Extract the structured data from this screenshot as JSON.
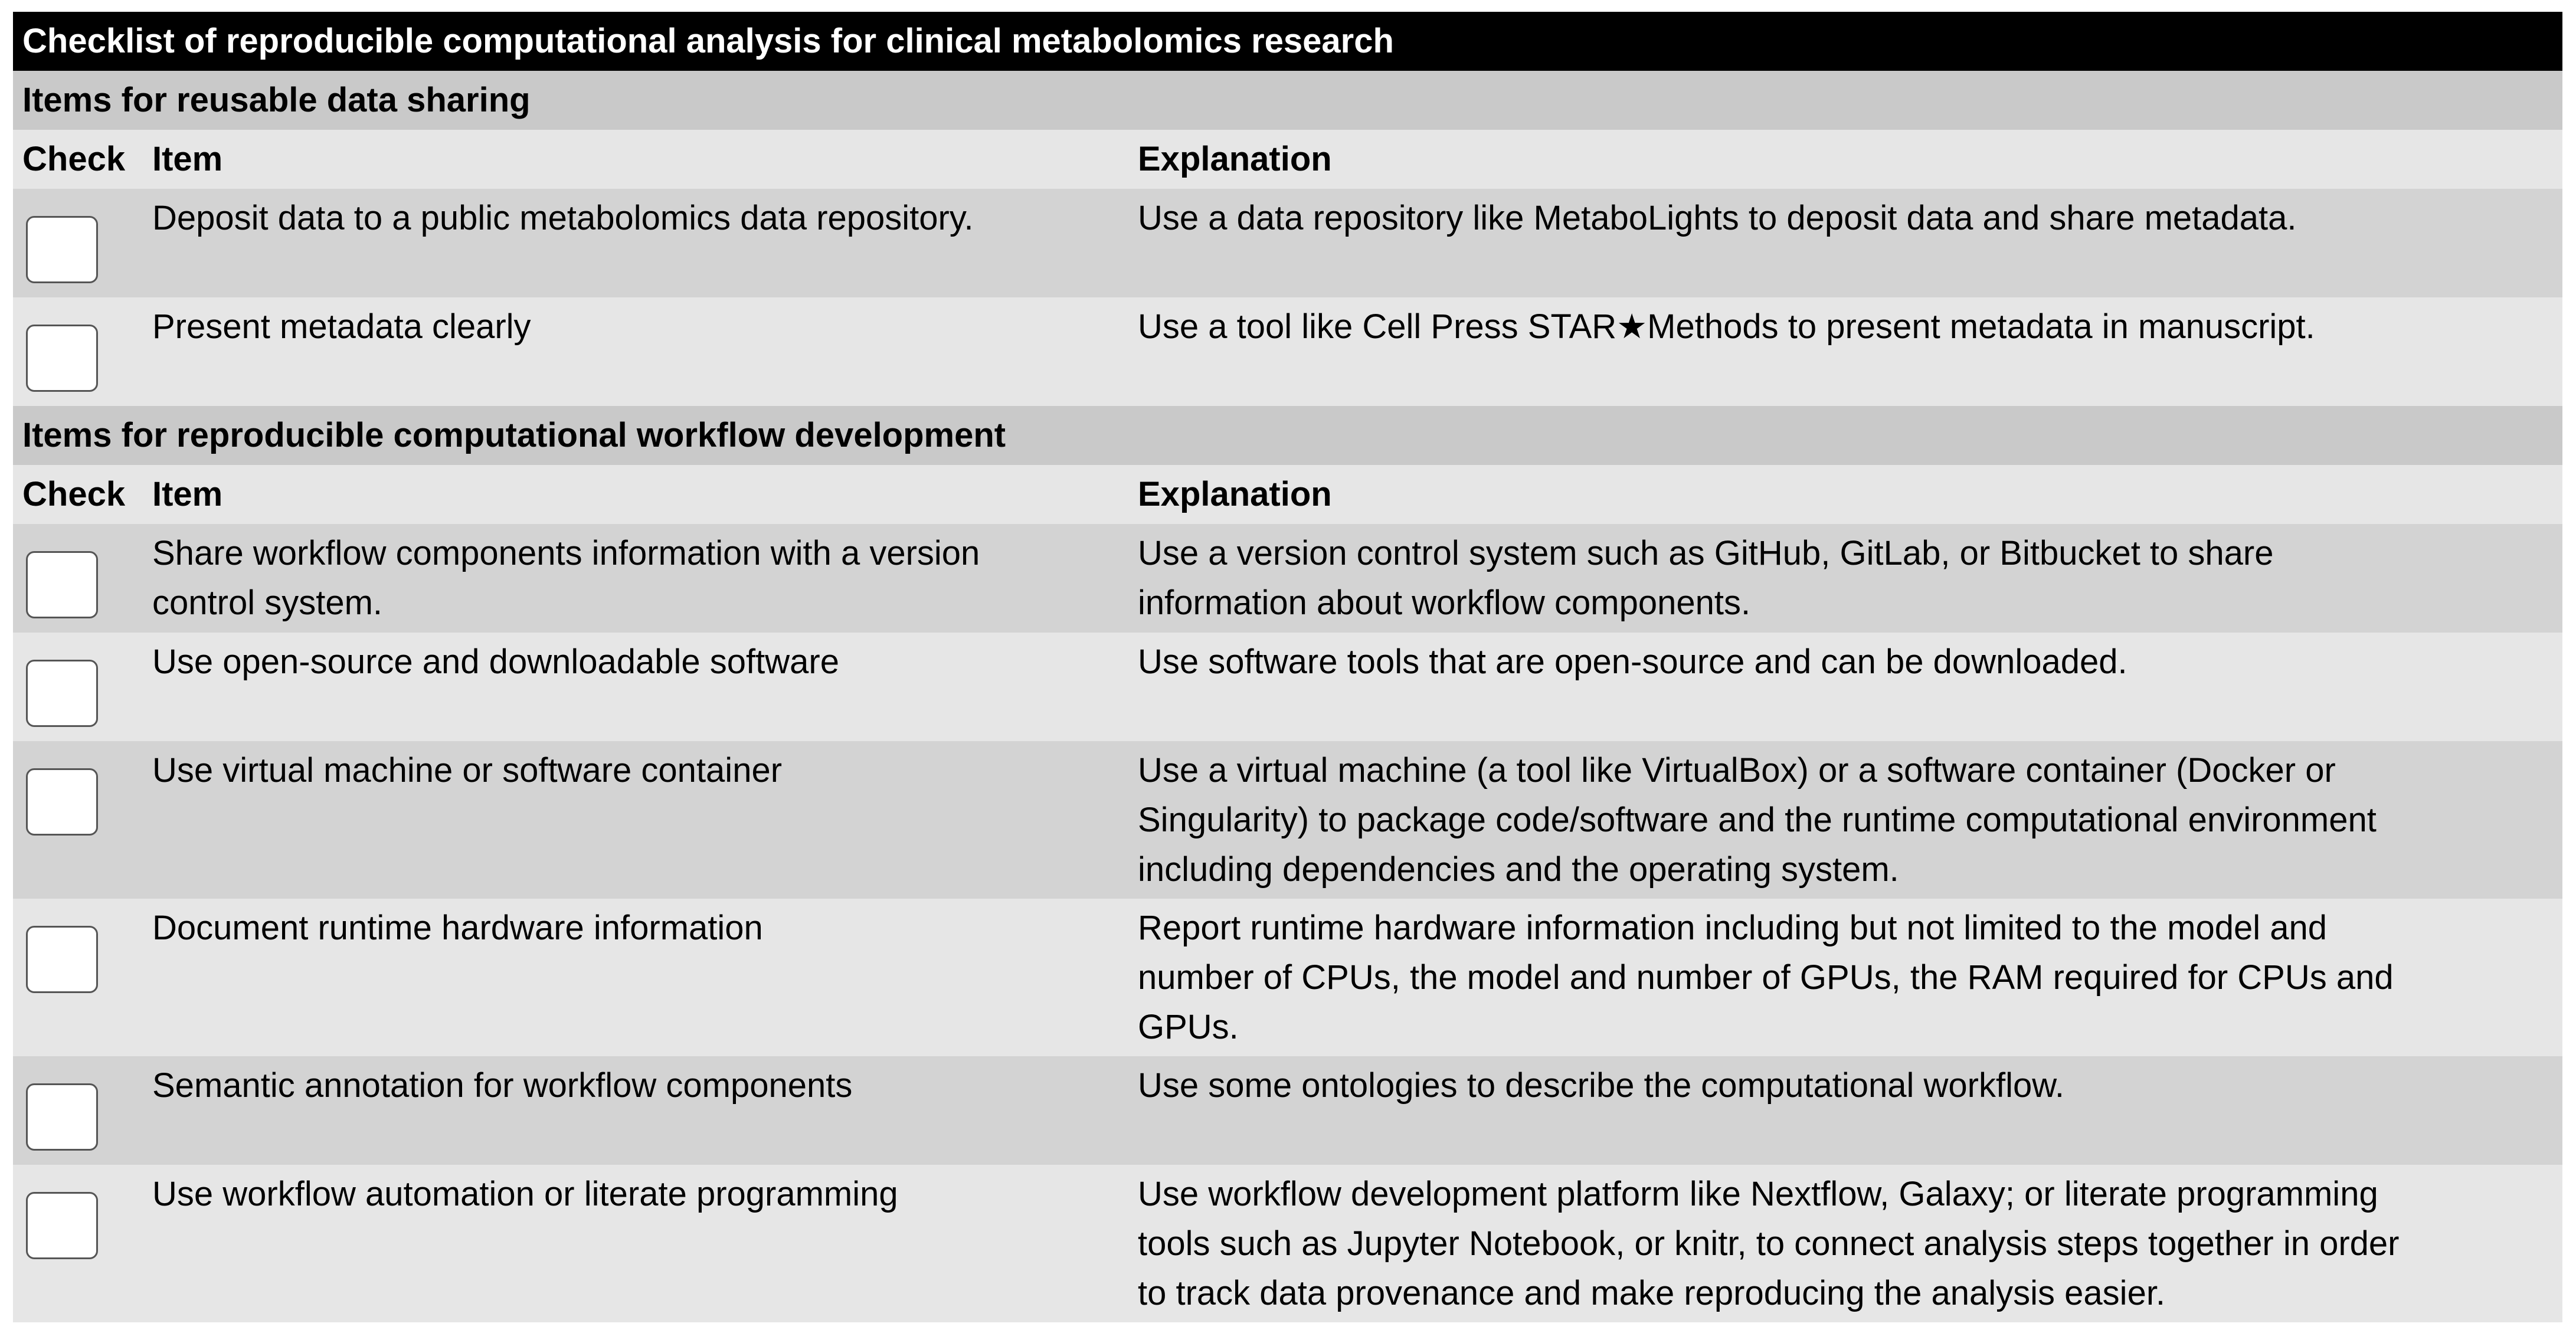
{
  "title": "Checklist of reproducible computational analysis for clinical metabolomics research",
  "columns": {
    "check": "Check",
    "item": "Item",
    "explanation": "Explanation"
  },
  "sections": [
    {
      "heading": "Items for reusable data sharing",
      "rows": [
        {
          "checked": false,
          "item_lines": [
            "Deposit data to a public metabolomics data repository."
          ],
          "explanation_lines": [
            "Use a data repository like MetaboLights to deposit data and share metadata."
          ]
        },
        {
          "checked": false,
          "item_lines": [
            "Present metadata clearly"
          ],
          "explanation_lines": [
            "Use a tool like Cell Press STAR★Methods to present metadata in manuscript."
          ]
        }
      ]
    },
    {
      "heading": "Items for reproducible computational workflow development",
      "rows": [
        {
          "checked": false,
          "item_lines": [
            "Share workflow components information with a version",
            "control system."
          ],
          "explanation_lines": [
            "Use a version control system such as GitHub, GitLab, or Bitbucket to share",
            "information about workflow components."
          ]
        },
        {
          "checked": false,
          "item_lines": [
            "Use open-source and downloadable software"
          ],
          "explanation_lines": [
            "Use software tools that are open-source and can be downloaded."
          ]
        },
        {
          "checked": false,
          "item_lines": [
            "Use virtual machine or software container"
          ],
          "explanation_lines": [
            "Use a virtual machine (a tool like VirtualBox) or a software container (Docker or",
            "Singularity) to package code/software and the runtime computational environment",
            "including dependencies and the operating system."
          ]
        },
        {
          "checked": false,
          "item_lines": [
            "Document runtime hardware information"
          ],
          "explanation_lines": [
            "Report runtime hardware information including but not limited to the model and",
            "number of CPUs, the model and number of GPUs, the RAM required for CPUs and",
            "GPUs."
          ]
        },
        {
          "checked": false,
          "item_lines": [
            "Semantic annotation for workflow components"
          ],
          "explanation_lines": [
            "Use some ontologies to describe the computational workflow."
          ]
        },
        {
          "checked": false,
          "item_lines": [
            "Use workflow automation or literate programming"
          ],
          "explanation_lines": [
            "Use workflow development platform like Nextflow, Galaxy; or literate programming",
            "tools such as Jupyter Notebook, or knitr, to connect analysis steps together in order",
            "to track data provenance and make reproducing the analysis easier."
          ]
        }
      ]
    }
  ]
}
